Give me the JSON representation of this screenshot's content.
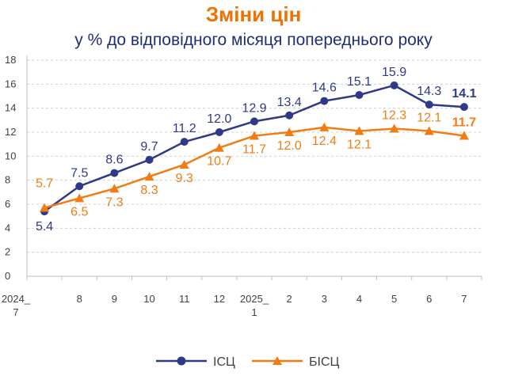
{
  "chart_data": {
    "type": "line",
    "title": "Зміни цін",
    "subtitle": "у % до відповідного місяця попереднього року",
    "title_color": "#F07000",
    "subtitle_color": "#1F2E7A",
    "categories": [
      "2024_ 7",
      "8",
      "9",
      "10",
      "11",
      "12",
      "2025_ 1",
      "2",
      "3",
      "4",
      "5",
      "6",
      "7"
    ],
    "ylim": [
      0,
      18
    ],
    "ytick_step": 2,
    "grid": true,
    "legend_position": "bottom",
    "series": [
      {
        "name": "ІСЦ",
        "color": "#2E3A87",
        "marker": "circle",
        "values": [
          5.4,
          7.5,
          8.6,
          9.7,
          11.2,
          12.0,
          12.9,
          13.4,
          14.6,
          15.1,
          15.9,
          14.3,
          14.1
        ],
        "labels": [
          "5.4",
          "7.5",
          "8.6",
          "9.7",
          "11.2",
          "12.0",
          "12.9",
          "13.4",
          "14.6",
          "15.1",
          "15.9",
          "14.3",
          "14.1"
        ],
        "label_placement": [
          "below",
          "above",
          "above",
          "above",
          "above",
          "above",
          "above",
          "above",
          "above",
          "above",
          "above",
          "above",
          "above"
        ]
      },
      {
        "name": "БІСЦ",
        "color": "#F07D13",
        "marker": "triangle",
        "values": [
          5.7,
          6.5,
          7.3,
          8.3,
          9.3,
          10.7,
          11.7,
          12.0,
          12.4,
          12.1,
          12.3,
          12.1,
          11.7
        ],
        "labels": [
          "5.7",
          "6.5",
          "7.3",
          "8.3",
          "9.3",
          "10.7",
          "11.7",
          "12.0",
          "12.4",
          "12.1",
          "12.3",
          "12.1",
          "11.7"
        ],
        "label_placement": [
          "above",
          "below",
          "below",
          "below",
          "below",
          "below",
          "below",
          "below",
          "below",
          "below",
          "above",
          "above",
          "above"
        ]
      }
    ],
    "bold_last_label": true
  }
}
